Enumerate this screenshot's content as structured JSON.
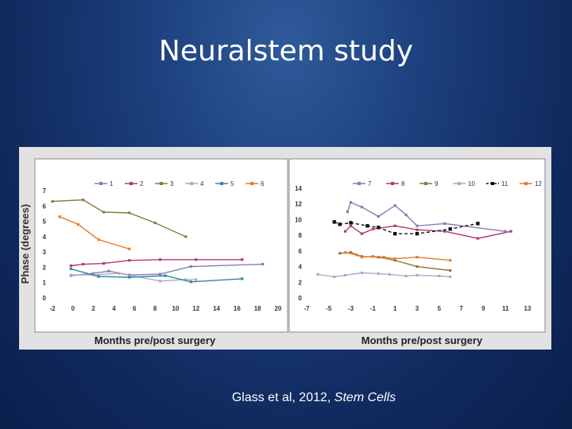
{
  "slide": {
    "title": "Neuralstem study",
    "caption_prefix": "Glass et al, 2012, ",
    "caption_journal": "Stem Cells"
  },
  "chart_data": [
    {
      "type": "line",
      "title": "",
      "xlabel": "Months pre/post surgery",
      "ylabel": "Phase (degrees)",
      "xlim": [
        -2,
        20
      ],
      "ylim": [
        0,
        7
      ],
      "xticks": [
        -2,
        0,
        2,
        4,
        6,
        8,
        10,
        12,
        14,
        16,
        18,
        20
      ],
      "yticks": [
        0,
        1,
        2,
        3,
        4,
        5,
        6,
        7
      ],
      "legend": "top",
      "series": [
        {
          "name": "1",
          "color": "#7f7fb4",
          "x": [
            -0.2,
            2,
            3.5,
            5.5,
            8.5,
            11.5,
            18.5
          ],
          "y": [
            1.45,
            1.6,
            1.75,
            1.5,
            1.55,
            2.05,
            2.2
          ]
        },
        {
          "name": "2",
          "color": "#b03a73",
          "x": [
            -0.2,
            1,
            3,
            5.5,
            8.5,
            12,
            16.5
          ],
          "y": [
            2.1,
            2.2,
            2.25,
            2.45,
            2.5,
            2.5,
            2.5
          ]
        },
        {
          "name": "3",
          "color": "#8a7a3a",
          "x": [
            -2,
            1,
            3,
            5.5,
            8,
            11
          ],
          "y": [
            6.3,
            6.4,
            5.6,
            5.55,
            4.9,
            4.0
          ]
        },
        {
          "name": "4",
          "color": "#b6a6c8",
          "x": [
            -0.2,
            2,
            4.5,
            8.5,
            11,
            12
          ],
          "y": [
            1.5,
            1.5,
            1.6,
            1.1,
            1.2,
            1.2
          ]
        },
        {
          "name": "5",
          "color": "#2a8a9a",
          "x": [
            -0.2,
            2.5,
            5.5,
            9,
            11.5,
            16.5
          ],
          "y": [
            1.9,
            1.4,
            1.35,
            1.45,
            1.05,
            1.25
          ]
        },
        {
          "name": "6",
          "color": "#e87a2a",
          "x": [
            -1.3,
            0.5,
            2.5,
            5.5
          ],
          "y": [
            5.3,
            4.8,
            3.8,
            3.2
          ]
        }
      ]
    },
    {
      "type": "line",
      "title": "",
      "xlabel": "Months pre/post surgery",
      "ylabel": "",
      "xlim": [
        -7,
        13
      ],
      "ylim": [
        0,
        14
      ],
      "xticks": [
        -7,
        -5,
        -3,
        -1,
        1,
        3,
        5,
        7,
        9,
        11,
        13
      ],
      "ytick_labels": [
        "0",
        "2",
        "4",
        "6",
        "8",
        "10",
        "12",
        "14"
      ],
      "xtick_labels": [
        "-7",
        "-5",
        "-3",
        "-1",
        "1",
        "3",
        "5",
        "7",
        "9",
        "11",
        "13"
      ],
      "legend": "top",
      "series": [
        {
          "name": "7",
          "color": "#7f7fb4",
          "x": [
            -3.3,
            -3,
            -2,
            -0.5,
            1,
            2,
            3,
            5.5,
            11
          ],
          "y": [
            11.0,
            12.2,
            11.6,
            10.4,
            11.8,
            10.6,
            9.2,
            9.5,
            8.5
          ]
        },
        {
          "name": "8",
          "color": "#b03a73",
          "x": [
            -3.5,
            -3,
            -2,
            -1,
            1,
            3,
            5.5,
            8.5,
            11.5
          ],
          "y": [
            8.5,
            9.2,
            8.2,
            8.8,
            9.2,
            8.7,
            8.5,
            7.6,
            8.5
          ]
        },
        {
          "name": "9",
          "color": "#8a7a3a",
          "x": [
            -4,
            -3,
            -2,
            -0.5,
            1,
            3,
            6
          ],
          "y": [
            5.7,
            5.8,
            5.3,
            5.2,
            4.8,
            4.0,
            3.5
          ]
        },
        {
          "name": "10",
          "color": "#b6a6c8",
          "x": [
            -6,
            -4.5,
            -3.5,
            -2,
            -0.5,
            0.5,
            2,
            3,
            5,
            6
          ],
          "y": [
            3.0,
            2.7,
            2.9,
            3.2,
            3.1,
            3.0,
            2.8,
            2.9,
            2.8,
            2.7
          ]
        },
        {
          "name": "11",
          "color": "#111111",
          "dashed": true,
          "x": [
            -4.5,
            -4,
            -3,
            -1.5,
            -0.5,
            1,
            3,
            6,
            8.5
          ],
          "y": [
            9.7,
            9.4,
            9.6,
            9.2,
            9.0,
            8.2,
            8.2,
            8.8,
            9.5
          ]
        },
        {
          "name": "12",
          "color": "#e87a2a",
          "x": [
            -3.5,
            -2.5,
            -2,
            -1,
            0,
            1,
            3,
            6
          ],
          "y": [
            5.8,
            5.5,
            5.2,
            5.3,
            5.2,
            5.0,
            5.2,
            4.8
          ]
        }
      ]
    }
  ]
}
